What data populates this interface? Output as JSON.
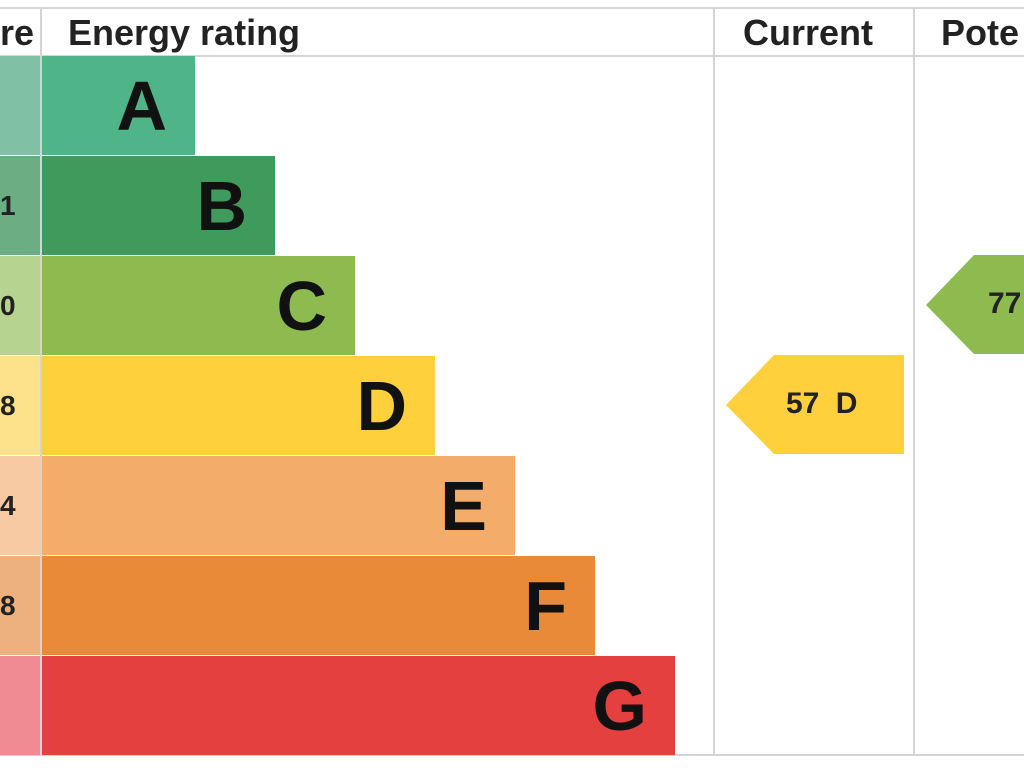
{
  "header": {
    "score": "re",
    "rating": "Energy rating",
    "current": "Current",
    "potential": "Pote"
  },
  "bands": [
    {
      "letter": "A",
      "color": "#4fb487",
      "tint": "#80c1a6"
    },
    {
      "score": "1",
      "letter": "B",
      "color": "#3f9b5b",
      "tint": "#6dad84"
    },
    {
      "score": "0",
      "letter": "C",
      "color": "#8dbb4f",
      "tint": "#b6d48f"
    },
    {
      "score": "8",
      "letter": "D",
      "color": "#fdd03c",
      "tint": "#fde28b"
    },
    {
      "score": "4",
      "letter": "E",
      "color": "#f4ac6b",
      "tint": "#f7caa4"
    },
    {
      "score": "8",
      "letter": "F",
      "color": "#e98a38",
      "tint": "#edb07f"
    },
    {
      "letter": "G",
      "color": "#e4403f",
      "tint": "#ee8b93"
    }
  ],
  "current": {
    "label": "57 D",
    "color": "#fdd03c"
  },
  "potential": {
    "label": "77",
    "color": "#8dbb4f"
  }
}
